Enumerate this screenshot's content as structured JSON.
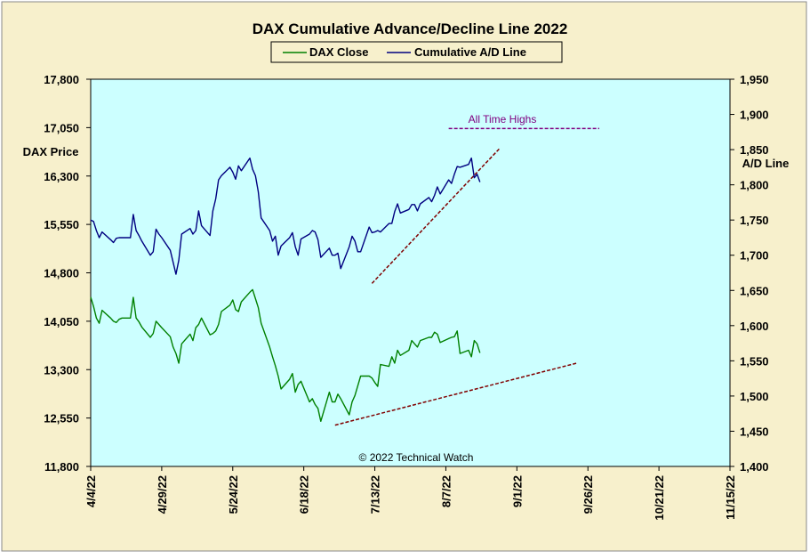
{
  "colors": {
    "outer_bg": "#f7f0cc",
    "plot_bg": "#ccffff",
    "dax_line": "#008000",
    "ad_line": "#000080",
    "trend_line": "#800000",
    "annotation": "#800080"
  },
  "chart_data": {
    "type": "line",
    "title": "DAX Cumulative  Advance/Decline  Line  2022",
    "legend": {
      "placement": "top-center",
      "entries": [
        "DAX Close",
        "Cumulative A/D Line"
      ]
    },
    "grid": false,
    "x_tick_labels": [
      "4/4/22",
      "4/29/22",
      "5/24/22",
      "6/18/22",
      "7/13/22",
      "8/7/22",
      "9/1/22",
      "9/26/22",
      "10/21/22",
      "11/15/22"
    ],
    "x_range_days": [
      0,
      225
    ],
    "left_axis": {
      "label": "DAX Price",
      "range": [
        11800,
        17800
      ],
      "ticks": [
        "17,800",
        "17,050",
        "16,300",
        "15,550",
        "14,800",
        "14,050",
        "13,300",
        "12,550",
        "11,800"
      ]
    },
    "right_axis": {
      "label": "A/D Line",
      "range": [
        1400,
        1950
      ],
      "ticks": [
        "1,950",
        "1,900",
        "1,850",
        "1,800",
        "1,750",
        "1,700",
        "1,650",
        "1,600",
        "1,550",
        "1,500",
        "1,450",
        "1,400"
      ]
    },
    "series": [
      {
        "name": "DAX Close",
        "axis": "left",
        "color": "#008000",
        "x": [
          0,
          1,
          2,
          3,
          4,
          7,
          8,
          9,
          10,
          11,
          14,
          15,
          16,
          17,
          18,
          21,
          22,
          23,
          24,
          25,
          28,
          29,
          30,
          31,
          32,
          35,
          36,
          37,
          38,
          39,
          42,
          43,
          44,
          45,
          46,
          49,
          50,
          51,
          52,
          53,
          56,
          57,
          58,
          59,
          60,
          63,
          64,
          65,
          66,
          67,
          70,
          71,
          72,
          73,
          74,
          77,
          78,
          79,
          80,
          81,
          84,
          85,
          86,
          87,
          88,
          91,
          92,
          93,
          94,
          95,
          98,
          99,
          100,
          101,
          102,
          105,
          106,
          107,
          108,
          109,
          112,
          113,
          114,
          115,
          116,
          119,
          120,
          121,
          122,
          123,
          126,
          127,
          128,
          129,
          130,
          133,
          134,
          135,
          136,
          137
        ],
        "y": [
          14424,
          14280,
          14100,
          14020,
          14220,
          14100,
          14050,
          14030,
          14080,
          14100,
          14100,
          14420,
          14100,
          14040,
          13960,
          13800,
          13860,
          14050,
          14000,
          13950,
          13810,
          13650,
          13550,
          13400,
          13700,
          13850,
          13750,
          13950,
          14000,
          14100,
          13840,
          13860,
          13900,
          14000,
          14200,
          14300,
          14380,
          14230,
          14200,
          14350,
          14500,
          14540,
          14400,
          14260,
          14020,
          13650,
          13500,
          13360,
          13200,
          13000,
          13150,
          13240,
          12950,
          13070,
          13120,
          12800,
          12850,
          12760,
          12700,
          12500,
          12950,
          12800,
          12800,
          12920,
          12850,
          12600,
          12800,
          12900,
          13050,
          13200,
          13200,
          13170,
          13100,
          13040,
          13380,
          13350,
          13500,
          13400,
          13600,
          13520,
          13600,
          13750,
          13700,
          13650,
          13750,
          13800,
          13800,
          13880,
          13850,
          13720,
          13780,
          13800,
          13810,
          13900,
          13550,
          13600,
          13500,
          13750,
          13700,
          13560
        ]
      },
      {
        "name": "Cumulative A/D Line",
        "axis": "right",
        "color": "#000080",
        "x": [
          0,
          1,
          2,
          3,
          4,
          7,
          8,
          9,
          10,
          11,
          14,
          15,
          16,
          17,
          18,
          21,
          22,
          23,
          24,
          25,
          28,
          29,
          30,
          31,
          32,
          35,
          36,
          37,
          38,
          39,
          42,
          43,
          44,
          45,
          46,
          49,
          50,
          51,
          52,
          53,
          56,
          57,
          58,
          59,
          60,
          63,
          64,
          65,
          66,
          67,
          70,
          71,
          72,
          73,
          74,
          77,
          78,
          79,
          80,
          81,
          84,
          85,
          86,
          87,
          88,
          91,
          92,
          93,
          94,
          95,
          98,
          99,
          100,
          101,
          102,
          105,
          106,
          107,
          108,
          109,
          112,
          113,
          114,
          115,
          116,
          119,
          120,
          121,
          122,
          123,
          126,
          127,
          128,
          129,
          130,
          133,
          134,
          135,
          136,
          137
        ],
        "y": [
          1750,
          1748,
          1735,
          1725,
          1733,
          1722,
          1718,
          1724,
          1725,
          1725,
          1725,
          1758,
          1735,
          1728,
          1720,
          1700,
          1705,
          1737,
          1730,
          1725,
          1707,
          1690,
          1673,
          1693,
          1730,
          1738,
          1730,
          1735,
          1763,
          1742,
          1728,
          1763,
          1780,
          1807,
          1813,
          1825,
          1818,
          1808,
          1827,
          1820,
          1838,
          1822,
          1813,
          1790,
          1753,
          1735,
          1720,
          1727,
          1700,
          1713,
          1725,
          1732,
          1712,
          1700,
          1723,
          1730,
          1735,
          1733,
          1722,
          1697,
          1710,
          1700,
          1700,
          1703,
          1681,
          1712,
          1727,
          1720,
          1705,
          1705,
          1740,
          1732,
          1733,
          1735,
          1733,
          1745,
          1745,
          1762,
          1773,
          1760,
          1765,
          1772,
          1772,
          1763,
          1773,
          1782,
          1776,
          1785,
          1797,
          1787,
          1807,
          1802,
          1815,
          1826,
          1825,
          1829,
          1838,
          1810,
          1815,
          1804
        ]
      }
    ],
    "trendlines": [
      {
        "axis": "right",
        "x": [
          99,
          144
        ],
        "y": [
          1660,
          1852
        ]
      },
      {
        "axis": "left",
        "x": [
          86,
          171
        ],
        "y": [
          12440,
          13400
        ]
      },
      {
        "axis": "right",
        "label": "All Time Highs",
        "x": [
          126,
          179
        ],
        "y": [
          1880,
          1880
        ]
      }
    ],
    "annotations": [
      "All Time Highs",
      "© 2022 Technical Watch"
    ]
  }
}
